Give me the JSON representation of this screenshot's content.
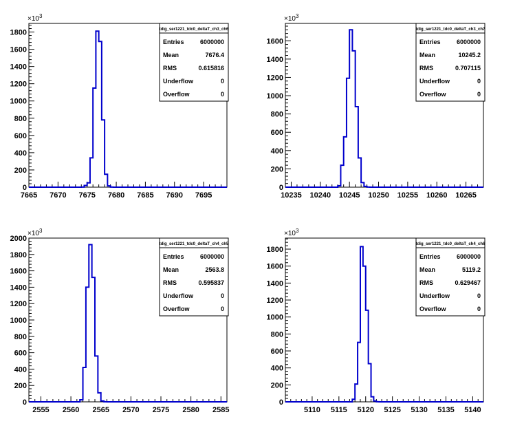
{
  "style": {
    "line_color": "#0000cc",
    "axis_color": "#000000",
    "background": "#ffffff"
  },
  "stat_labels": {
    "entries": "Entries",
    "mean": "Mean",
    "rms": "RMS",
    "underflow": "Underflow",
    "overflow": "Overflow"
  },
  "exponent_label": "×10³",
  "chart_data": [
    {
      "type": "bar",
      "title": "tdig_ser1221_tdc0_deltaT_ch3_ch6",
      "xlabel": "",
      "ylabel": "",
      "xlim": [
        7665,
        7699
      ],
      "ylim": [
        0,
        1900
      ],
      "xticks": [
        7665,
        7670,
        7675,
        7680,
        7685,
        7690,
        7695
      ],
      "yticks": [
        0,
        200,
        400,
        600,
        800,
        1000,
        1200,
        1400,
        1600,
        1800
      ],
      "bin_width": 0.5,
      "bins": [
        [
          7674.0,
          1
        ],
        [
          7674.5,
          20
        ],
        [
          7675.0,
          50
        ],
        [
          7675.5,
          340
        ],
        [
          7676.0,
          1150
        ],
        [
          7676.5,
          1810
        ],
        [
          7677.0,
          1690
        ],
        [
          7677.5,
          780
        ],
        [
          7678.0,
          150
        ],
        [
          7678.5,
          15
        ],
        [
          7679.0,
          1
        ]
      ],
      "stats": {
        "entries": "6000000",
        "mean": "7676.4",
        "rms": "0.615816",
        "underflow": "0",
        "overflow": "0"
      }
    },
    {
      "type": "bar",
      "title": "tdig_ser1221_tdc0_deltaT_ch3_ch7",
      "xlabel": "",
      "ylabel": "",
      "xlim": [
        10234,
        10268
      ],
      "ylim": [
        0,
        1790
      ],
      "xticks": [
        10235,
        10240,
        10245,
        10250,
        10255,
        10260,
        10265
      ],
      "yticks": [
        0,
        200,
        400,
        600,
        800,
        1000,
        1200,
        1400,
        1600
      ],
      "bin_width": 0.5,
      "bins": [
        [
          10243.0,
          15
        ],
        [
          10243.5,
          240
        ],
        [
          10244.0,
          550
        ],
        [
          10244.5,
          1190
        ],
        [
          10245.0,
          1720
        ],
        [
          10245.5,
          1490
        ],
        [
          10246.0,
          880
        ],
        [
          10246.5,
          320
        ],
        [
          10247.0,
          50
        ],
        [
          10247.5,
          8
        ],
        [
          10248.0,
          1
        ]
      ],
      "stats": {
        "entries": "6000000",
        "mean": "10245.2",
        "rms": "0.707115",
        "underflow": "0",
        "overflow": "0"
      }
    },
    {
      "type": "bar",
      "title": "tdig_ser1221_tdc0_deltaT_ch4_ch5",
      "xlabel": "",
      "ylabel": "",
      "xlim": [
        2553,
        2586
      ],
      "ylim": [
        0,
        2000
      ],
      "xticks": [
        2555,
        2560,
        2565,
        2570,
        2575,
        2580,
        2585
      ],
      "yticks": [
        0,
        200,
        400,
        600,
        800,
        1000,
        1200,
        1400,
        1600,
        1800,
        2000
      ],
      "bin_width": 0.5,
      "bins": [
        [
          2561.5,
          25
        ],
        [
          2562.0,
          420
        ],
        [
          2562.5,
          1400
        ],
        [
          2563.0,
          1920
        ],
        [
          2563.5,
          1520
        ],
        [
          2564.0,
          560
        ],
        [
          2564.5,
          110
        ],
        [
          2565.0,
          12
        ],
        [
          2565.5,
          1
        ]
      ],
      "stats": {
        "entries": "6000000",
        "mean": "2563.8",
        "rms": "0.595837",
        "underflow": "0",
        "overflow": "0"
      }
    },
    {
      "type": "bar",
      "title": "tdig_ser1221_tdc0_deltaT_ch4_ch6",
      "xlabel": "",
      "ylabel": "",
      "xlim": [
        5105,
        5142
      ],
      "ylim": [
        0,
        1930
      ],
      "xticks": [
        5110,
        5115,
        5120,
        5125,
        5130,
        5135,
        5140
      ],
      "yticks": [
        0,
        200,
        400,
        600,
        800,
        1000,
        1200,
        1400,
        1600,
        1800
      ],
      "bin_width": 0.5,
      "bins": [
        [
          5117.5,
          30
        ],
        [
          5118.0,
          210
        ],
        [
          5118.5,
          700
        ],
        [
          5119.0,
          1830
        ],
        [
          5119.5,
          1600
        ],
        [
          5120.0,
          1080
        ],
        [
          5120.5,
          450
        ],
        [
          5121.0,
          60
        ],
        [
          5121.5,
          10
        ],
        [
          5122.0,
          1
        ]
      ],
      "stats": {
        "entries": "6000000",
        "mean": "5119.2",
        "rms": "0.629467",
        "underflow": "0",
        "overflow": "0"
      }
    }
  ]
}
